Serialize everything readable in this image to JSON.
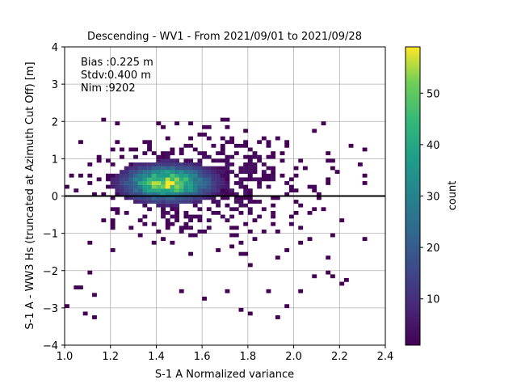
{
  "chart_data": {
    "type": "heatmap",
    "title": "Descending - WV1 - From 2021/09/01 to 2021/09/28",
    "xlabel": "S-1 A Normalized variance",
    "ylabel": "S-1 A - WW3 Hs (truncated at Azimuth Cut Off) [m]",
    "xlim": [
      1.0,
      2.4
    ],
    "ylim": [
      -4,
      4
    ],
    "x_ticks": [
      "1.0",
      "1.2",
      "1.4",
      "1.6",
      "1.8",
      "2.0",
      "2.2",
      "2.4"
    ],
    "y_ticks": [
      "4",
      "3",
      "2",
      "1",
      "0",
      "−1",
      "−2",
      "−3",
      "−4"
    ],
    "grid": true,
    "reference_line_y": 0,
    "annotations": [
      "Bias :0.225 m",
      "Stdv:0.400 m",
      "Nim :9202"
    ],
    "colorbar": {
      "label": "count",
      "range": [
        1,
        59
      ],
      "ticks": [
        "10",
        "20",
        "30",
        "40",
        "50"
      ],
      "colormap": "viridis"
    },
    "bins": {
      "x_step": 0.02,
      "y_step": 0.1,
      "core": {
        "x_center": 1.44,
        "y_center": 0.3,
        "peak_count": 59
      },
      "note_x_extent": [
        1.0,
        2.32
      ],
      "note_y_extent": [
        -3.3,
        2.1
      ]
    }
  }
}
